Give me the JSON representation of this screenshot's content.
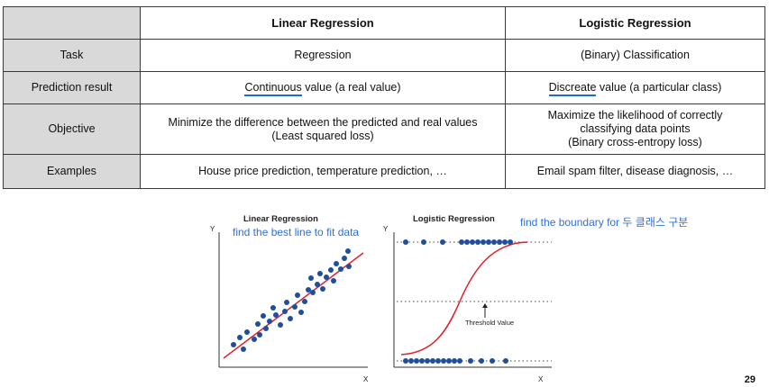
{
  "table": {
    "columns": [
      "",
      "Linear Regression",
      "Logistic Regression"
    ],
    "rows": [
      {
        "label": "Task",
        "linear": "Regression",
        "logistic": "(Binary) Classification"
      },
      {
        "label": "Prediction result",
        "linear_emph": "Continuous",
        "linear_rest": " value (a real value)",
        "logistic_emph": "Discreate",
        "logistic_rest": " value (a particular class)"
      },
      {
        "label": "Objective",
        "linear_line1": "Minimize the difference between the predicted and real values",
        "linear_line2": "(Least squared loss)",
        "logistic_line1": "Maximize the likelihood of correctly",
        "logistic_line2": "classifying data points",
        "logistic_line3": "(Binary cross-entropy loss)"
      },
      {
        "label": "Examples",
        "linear": "House price prediction, temperature prediction, …",
        "logistic": "Email spam filter, disease diagnosis, …"
      }
    ]
  },
  "linear_plot": {
    "title": "Linear Regression",
    "note": "find the best line to fit data",
    "y_label": "Y",
    "x_label": "X",
    "line_color": "#e0202a",
    "point_color": "#1f4e9c"
  },
  "logistic_plot": {
    "title": "Logistic Regression",
    "note": "find the boundary for 두 클래스 구분",
    "threshold_label": "Threshold Value",
    "y_label": "Y",
    "x_label": "X",
    "curve_color": "#e0202a",
    "point_color": "#1f4e9c"
  },
  "page_number": "29"
}
